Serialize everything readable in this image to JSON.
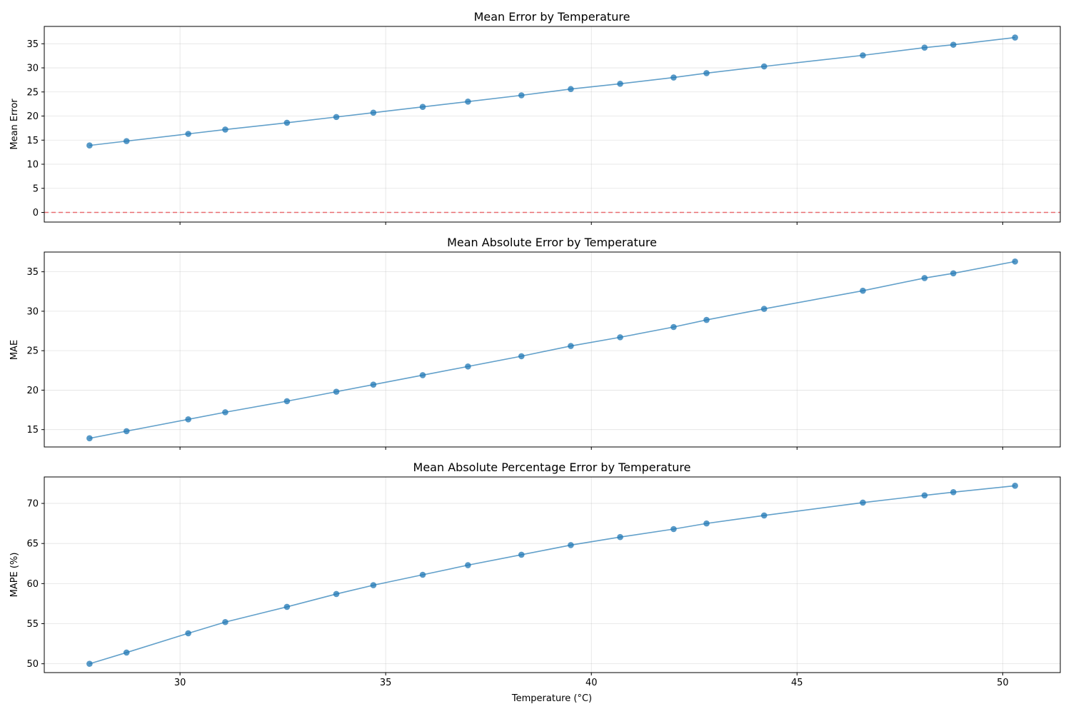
{
  "chart_data": [
    {
      "type": "line",
      "title": "Mean Error by Temperature",
      "xlabel": "",
      "ylabel": "Mean Error",
      "xlim": [
        26.7,
        51.4
      ],
      "ylim": [
        -2,
        38.6
      ],
      "xticks": [
        30,
        35,
        40,
        45,
        50
      ],
      "yticks": [
        0,
        5,
        10,
        15,
        20,
        25,
        30,
        35
      ],
      "show_xtick_labels": false,
      "grid": true,
      "reference_line": {
        "y": 0,
        "style": "dashed",
        "color": "#e8575a"
      },
      "series": [
        {
          "color": "#1f77b4",
          "x": [
            27.8,
            28.7,
            30.2,
            31.1,
            32.6,
            33.8,
            34.7,
            35.9,
            37.0,
            38.3,
            39.5,
            40.7,
            42.0,
            42.8,
            44.2,
            46.6,
            48.1,
            48.8,
            50.3
          ],
          "y": [
            13.9,
            14.8,
            16.3,
            17.2,
            18.6,
            19.8,
            20.7,
            21.9,
            23.0,
            24.3,
            25.6,
            26.7,
            28.0,
            28.9,
            30.3,
            32.6,
            34.2,
            34.8,
            36.3
          ]
        }
      ]
    },
    {
      "type": "line",
      "title": "Mean Absolute Error by Temperature",
      "xlabel": "",
      "ylabel": "MAE",
      "xlim": [
        26.7,
        51.4
      ],
      "ylim": [
        12.8,
        37.5
      ],
      "xticks": [
        30,
        35,
        40,
        45,
        50
      ],
      "yticks": [
        15,
        20,
        25,
        30,
        35
      ],
      "show_xtick_labels": false,
      "grid": true,
      "series": [
        {
          "color": "#1f77b4",
          "x": [
            27.8,
            28.7,
            30.2,
            31.1,
            32.6,
            33.8,
            34.7,
            35.9,
            37.0,
            38.3,
            39.5,
            40.7,
            42.0,
            42.8,
            44.2,
            46.6,
            48.1,
            48.8,
            50.3
          ],
          "y": [
            13.9,
            14.8,
            16.3,
            17.2,
            18.6,
            19.8,
            20.7,
            21.9,
            23.0,
            24.3,
            25.6,
            26.7,
            28.0,
            28.9,
            30.3,
            32.6,
            34.2,
            34.8,
            36.3
          ]
        }
      ]
    },
    {
      "type": "line",
      "title": "Mean Absolute Percentage Error by Temperature",
      "xlabel": "Temperature (°C)",
      "ylabel": "MAPE (%)",
      "xlim": [
        26.7,
        51.4
      ],
      "ylim": [
        48.9,
        73.3
      ],
      "xticks": [
        30,
        35,
        40,
        45,
        50
      ],
      "yticks": [
        50,
        55,
        60,
        65,
        70
      ],
      "show_xtick_labels": true,
      "grid": true,
      "series": [
        {
          "color": "#1f77b4",
          "x": [
            27.8,
            28.7,
            30.2,
            31.1,
            32.6,
            33.8,
            34.7,
            35.9,
            37.0,
            38.3,
            39.5,
            40.7,
            42.0,
            42.8,
            44.2,
            46.6,
            48.1,
            48.8,
            50.3
          ],
          "y": [
            50.0,
            51.4,
            53.8,
            55.2,
            57.1,
            58.7,
            59.8,
            61.1,
            62.3,
            63.6,
            64.8,
            65.8,
            66.8,
            67.5,
            68.5,
            70.1,
            71.0,
            71.4,
            72.2
          ]
        }
      ]
    }
  ]
}
